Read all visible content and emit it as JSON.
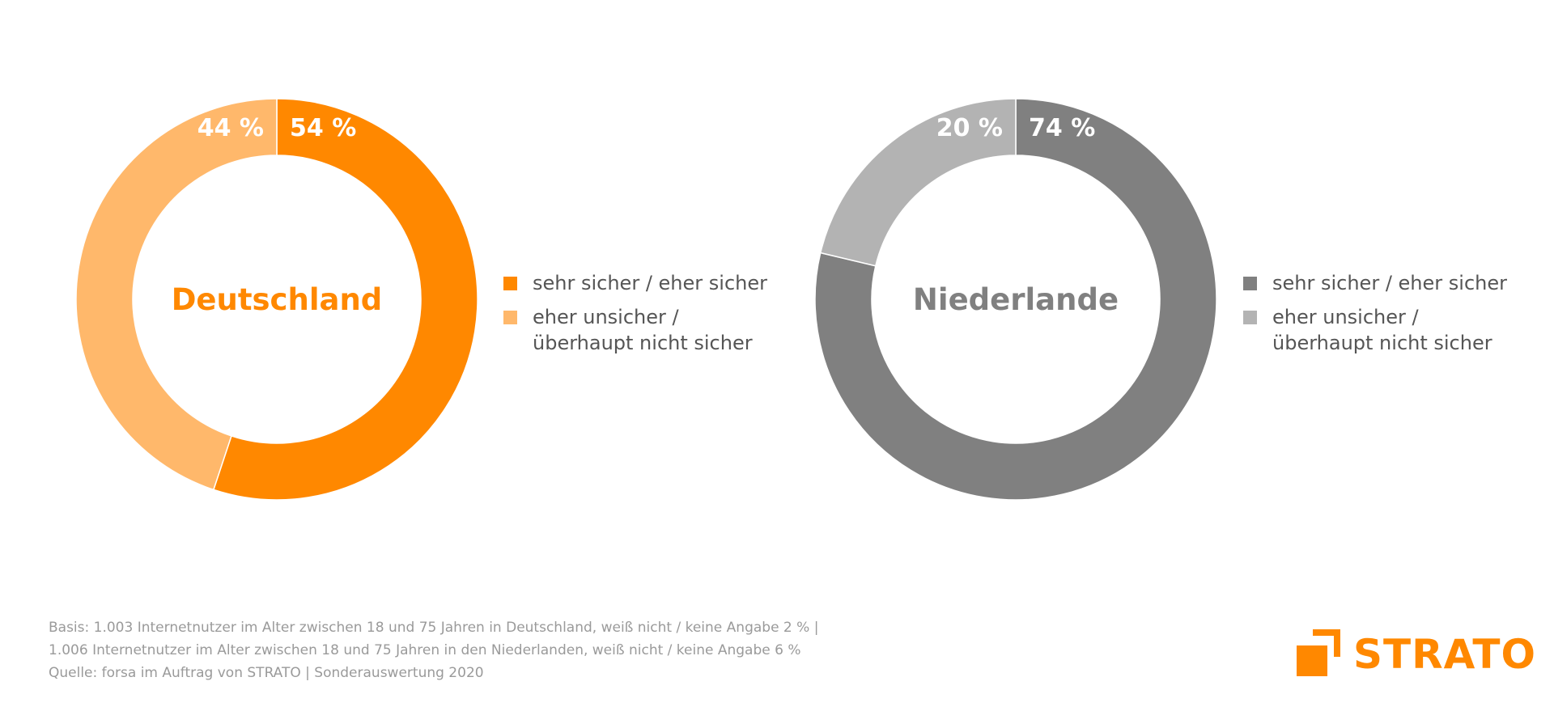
{
  "chart_data": [
    {
      "type": "pie",
      "title": "Deutschland",
      "title_color": "#ff8800",
      "slices": [
        {
          "label": "sehr sicher / eher sicher",
          "value": 54,
          "value_label": "54 %",
          "color": "#ff8800"
        },
        {
          "label": "eher unsicher / überhaupt nicht sicher",
          "value": 44,
          "value_label": "44 %",
          "color": "#ffb86b"
        }
      ],
      "legend": {
        "placement": "right",
        "entries": [
          {
            "lines": [
              "sehr sicher / eher sicher"
            ],
            "color": "#ff8800"
          },
          {
            "lines": [
              "eher unsicher /",
              "überhaupt nicht sicher"
            ],
            "color": "#ffb86b"
          }
        ]
      }
    },
    {
      "type": "pie",
      "title": "Niederlande",
      "title_color": "#808080",
      "slices": [
        {
          "label": "sehr sicher / eher sicher",
          "value": 74,
          "value_label": "74 %",
          "color": "#808080"
        },
        {
          "label": "eher unsicher / überhaupt nicht sicher",
          "value": 20,
          "value_label": "20 %",
          "color": "#b3b3b3"
        }
      ],
      "legend": {
        "placement": "right",
        "entries": [
          {
            "lines": [
              "sehr sicher / eher sicher"
            ],
            "color": "#808080"
          },
          {
            "lines": [
              "eher unsicher /",
              "überhaupt nicht sicher"
            ],
            "color": "#b3b3b3"
          }
        ]
      }
    }
  ],
  "footnote": {
    "line1": "Basis: 1.003 Internetnutzer im Alter zwischen 18 und 75 Jahren in Deutschland, weiß nicht / keine Angabe 2 % |",
    "line2": "1.006 Internetnutzer im Alter zwischen 18 und 75 Jahren in den Niederlanden, weiß nicht / keine Angabe 6 %",
    "line3": "Quelle: forsa im Auftrag von STRATO | Sonderauswertung 2020"
  },
  "logo": {
    "text": "STRATO",
    "color": "#ff8800",
    "icon": "strato-logo-icon"
  }
}
